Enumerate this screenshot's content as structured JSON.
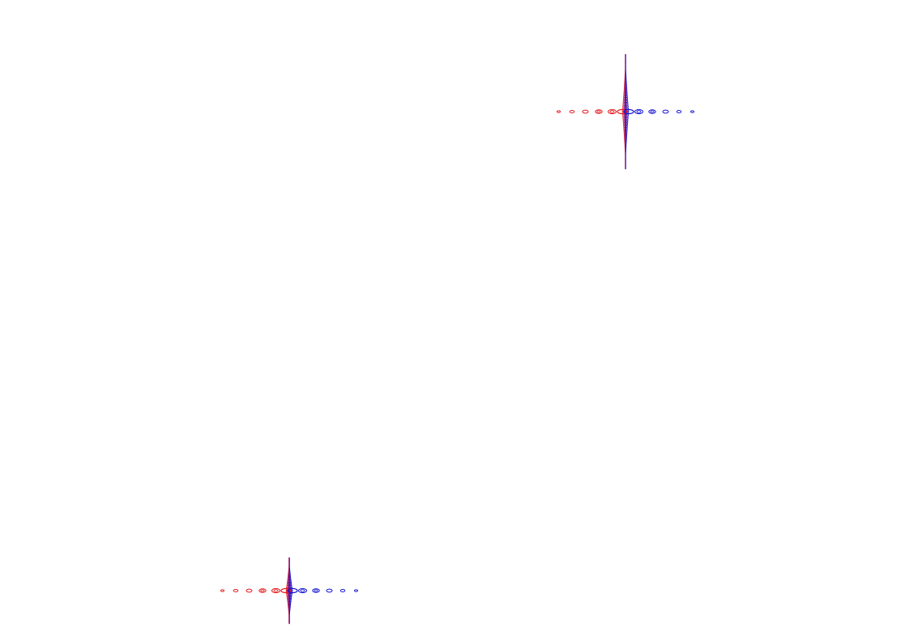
{
  "page": {
    "background": "#ffffff"
  },
  "colors": {
    "left_series": "#e4161a",
    "right_series": "#1414d2",
    "mixed_series": "#8a1aa6"
  },
  "glyphs": [
    {
      "id": "glyph-top-right",
      "rings_per_side": 5,
      "vertical_dots": 34
    },
    {
      "id": "glyph-bottom-left",
      "rings_per_side": 5,
      "vertical_dots": 28
    }
  ]
}
